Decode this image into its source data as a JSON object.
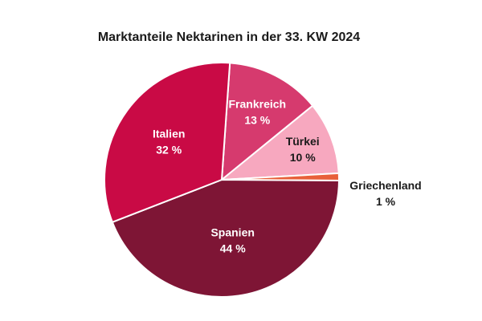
{
  "chart_data": {
    "type": "pie",
    "title": "Marktanteile Nektarinen in der 33. KW 2024",
    "slices": [
      {
        "label": "Frankreich",
        "value": 13,
        "value_label": "13 %",
        "color": "#d63a6e",
        "text_color": "#ffffff"
      },
      {
        "label": "Türkei",
        "value": 10,
        "value_label": "10 %",
        "color": "#f7a8bf",
        "text_color": "#1a1a1a"
      },
      {
        "label": "Griechenland",
        "value": 1,
        "value_label": "1 %",
        "color": "#e8603a",
        "text_color": "#1a1a1a"
      },
      {
        "label": "Spanien",
        "value": 44,
        "value_label": "44 %",
        "color": "#7e1535",
        "text_color": "#ffffff"
      },
      {
        "label": "Italien",
        "value": 32,
        "value_label": "32 %",
        "color": "#c90a45",
        "text_color": "#ffffff"
      }
    ],
    "legend": "none"
  }
}
